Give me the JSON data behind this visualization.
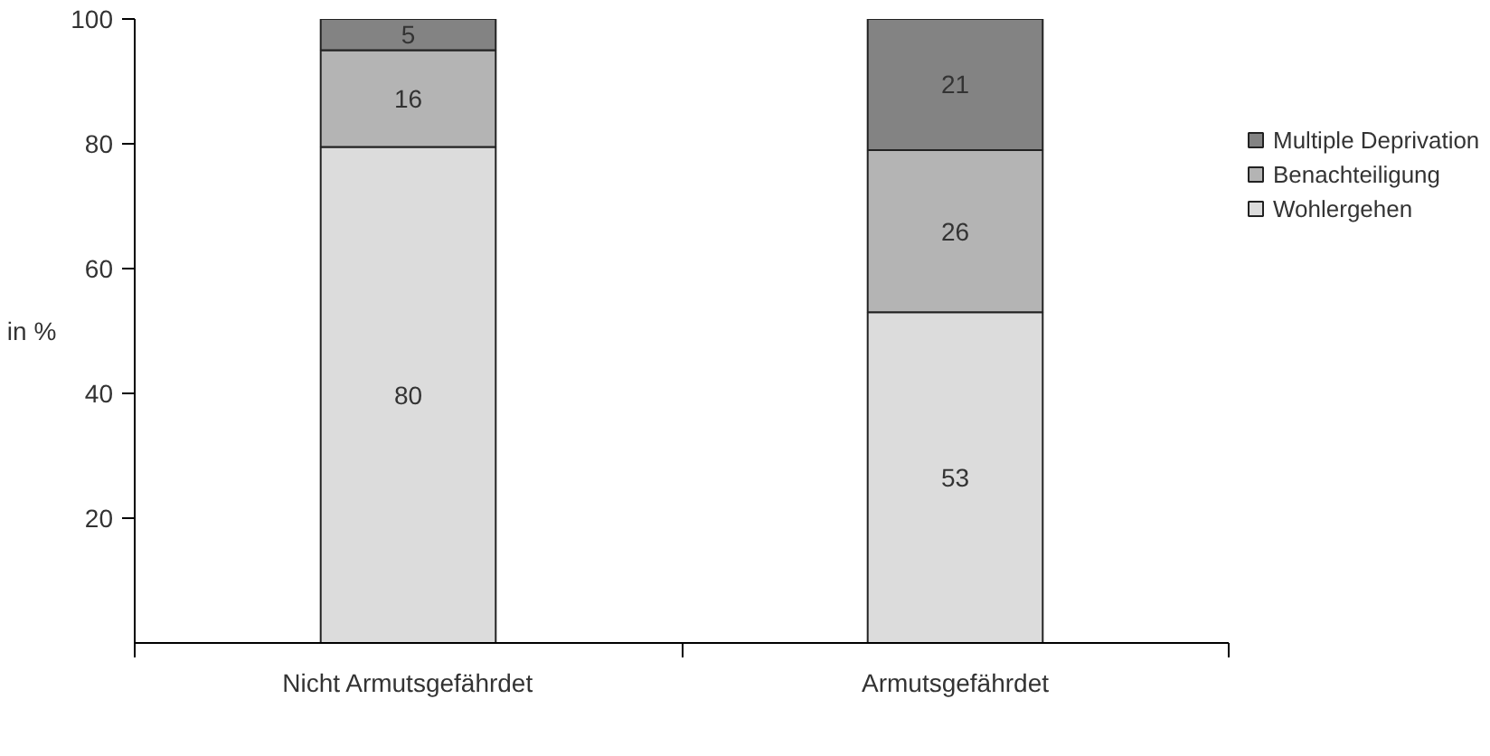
{
  "chart_data": {
    "type": "bar",
    "stacked": true,
    "ylabel": "in %",
    "categories": [
      "Nicht Armutsgefährdet",
      "Armutsgefährdet"
    ],
    "series": [
      {
        "name": "Wohlergehen",
        "color": "#dcdcdc",
        "values": [
          79.5,
          53
        ],
        "value_labels": [
          "80",
          "53"
        ]
      },
      {
        "name": "Benachteiligung",
        "color": "#b4b4b4",
        "values": [
          15.5,
          26
        ],
        "value_labels": [
          "16",
          "26"
        ]
      },
      {
        "name": "Multiple Deprivation",
        "color": "#838383",
        "values": [
          5,
          21
        ],
        "value_labels": [
          "5",
          "21"
        ]
      }
    ],
    "ylim": [
      0,
      100
    ],
    "yticks": [
      20,
      40,
      60,
      80,
      100
    ],
    "grid": false,
    "legend": "right"
  }
}
